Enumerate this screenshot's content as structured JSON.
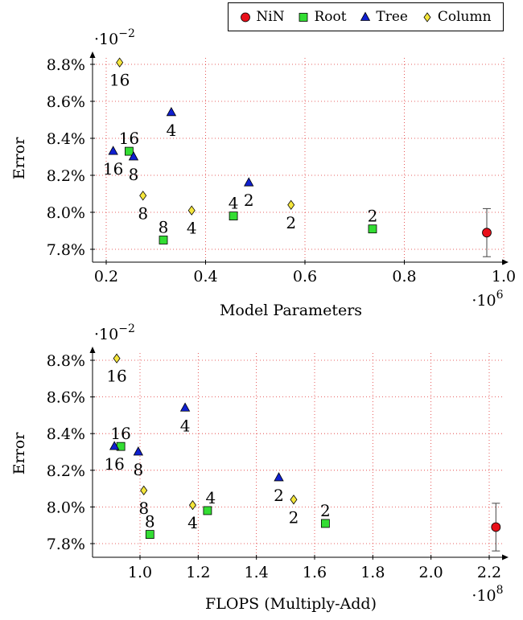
{
  "legend": [
    {
      "label": "NiN",
      "marker": "circle",
      "color": "#e8101a"
    },
    {
      "label": "Root",
      "marker": "square",
      "color": "#33dd33"
    },
    {
      "label": "Tree",
      "marker": "triangle",
      "color": "#1020d0"
    },
    {
      "label": "Column",
      "marker": "diamond",
      "color": "#f5e63c"
    }
  ],
  "chart_data": [
    {
      "type": "scatter",
      "xlabel": "Model Parameters",
      "ylabel": "Error",
      "x_multiplier": "·10^6",
      "y_multiplier": "·10^-2",
      "xlim": [
        0.13,
        1.0
      ],
      "ylim": [
        7.7,
        8.92
      ],
      "xticks": [
        0.2,
        0.4,
        0.6,
        0.8,
        1.0
      ],
      "xtick_labels": [
        "0.2",
        "0.4",
        "0.6",
        "0.8",
        "1.0"
      ],
      "yticks": [
        7.8,
        8.0,
        8.2,
        8.4,
        8.6,
        8.8
      ],
      "ytick_labels": [
        "7.8%",
        "8.0%",
        "8.2%",
        "8.4%",
        "8.6%",
        "8.8%"
      ],
      "grid": true,
      "series": [
        {
          "name": "NiN",
          "points": [
            {
              "x": 0.966,
              "y": 7.89,
              "err": 0.13
            }
          ]
        },
        {
          "name": "Root",
          "points": [
            {
              "x": 0.246,
              "y": 8.33,
              "label": "16"
            },
            {
              "x": 0.315,
              "y": 7.85,
              "label": "8"
            },
            {
              "x": 0.456,
              "y": 7.98,
              "label": "4"
            },
            {
              "x": 0.736,
              "y": 7.91,
              "label": "2"
            }
          ]
        },
        {
          "name": "Tree",
          "points": [
            {
              "x": 0.214,
              "y": 8.33,
              "label": "16"
            },
            {
              "x": 0.255,
              "y": 8.3,
              "label": "8"
            },
            {
              "x": 0.331,
              "y": 8.54,
              "label": "4"
            },
            {
              "x": 0.487,
              "y": 8.16,
              "label": "2"
            }
          ]
        },
        {
          "name": "Column",
          "points": [
            {
              "x": 0.227,
              "y": 8.81,
              "label": "16"
            },
            {
              "x": 0.274,
              "y": 8.09,
              "label": "8"
            },
            {
              "x": 0.372,
              "y": 8.01,
              "label": "4"
            },
            {
              "x": 0.572,
              "y": 8.04,
              "label": "2"
            }
          ]
        }
      ]
    },
    {
      "type": "scatter",
      "xlabel": "FLOPS (Multiply-Add)",
      "ylabel": "Error",
      "x_multiplier": "·10^8",
      "y_multiplier": "·10^-2",
      "xlim": [
        0.86,
        2.3
      ],
      "ylim": [
        7.7,
        8.92
      ],
      "xticks": [
        1.0,
        1.2,
        1.4,
        1.6,
        1.8,
        2.0,
        2.2
      ],
      "xtick_labels": [
        "1.0",
        "1.2",
        "1.4",
        "1.6",
        "1.8",
        "2.0",
        "2.2"
      ],
      "yticks": [
        7.8,
        8.0,
        8.2,
        8.4,
        8.6,
        8.8
      ],
      "ytick_labels": [
        "7.8%",
        "8.0%",
        "8.2%",
        "8.4%",
        "8.6%",
        "8.8%"
      ],
      "grid": true,
      "series": [
        {
          "name": "NiN",
          "points": [
            {
              "x": 2.223,
              "y": 7.89,
              "err": 0.13
            }
          ]
        },
        {
          "name": "Root",
          "points": [
            {
              "x": 0.934,
              "y": 8.33,
              "label": "16"
            },
            {
              "x": 1.034,
              "y": 7.85,
              "label": "8"
            },
            {
              "x": 1.232,
              "y": 7.98,
              "label": "4"
            },
            {
              "x": 1.637,
              "y": 7.91,
              "label": "2"
            }
          ]
        },
        {
          "name": "Tree",
          "points": [
            {
              "x": 0.912,
              "y": 8.33,
              "label": "16"
            },
            {
              "x": 0.994,
              "y": 8.3,
              "label": "8"
            },
            {
              "x": 1.155,
              "y": 8.54,
              "label": "4"
            },
            {
              "x": 1.477,
              "y": 8.16,
              "label": "2"
            }
          ]
        },
        {
          "name": "Column",
          "points": [
            {
              "x": 0.92,
              "y": 8.81,
              "label": "16"
            },
            {
              "x": 1.013,
              "y": 8.09,
              "label": "8"
            },
            {
              "x": 1.181,
              "y": 8.01,
              "label": "4"
            },
            {
              "x": 1.528,
              "y": 8.04,
              "label": "2"
            }
          ]
        }
      ]
    }
  ]
}
